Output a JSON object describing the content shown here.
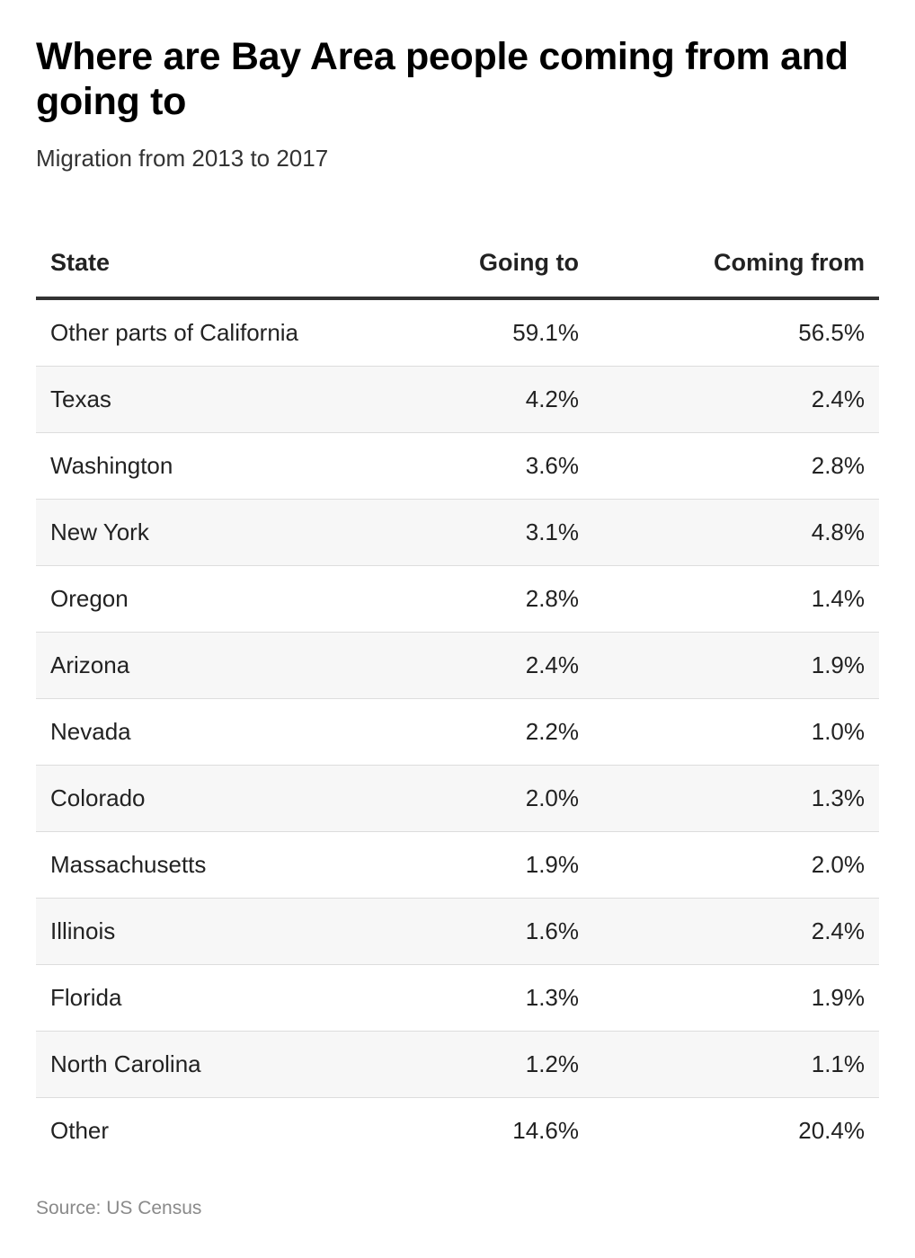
{
  "header": {
    "title": "Where are Bay Area people coming from and going to",
    "subtitle": "Migration from 2013 to 2017"
  },
  "table": {
    "columns": [
      "State",
      "Going to",
      "Coming from"
    ],
    "rows": [
      [
        "Other parts of California",
        "59.1%",
        "56.5%"
      ],
      [
        "Texas",
        "4.2%",
        "2.4%"
      ],
      [
        "Washington",
        "3.6%",
        "2.8%"
      ],
      [
        "New York",
        "3.1%",
        "4.8%"
      ],
      [
        "Oregon",
        "2.8%",
        "1.4%"
      ],
      [
        "Arizona",
        "2.4%",
        "1.9%"
      ],
      [
        "Nevada",
        "2.2%",
        "1.0%"
      ],
      [
        "Colorado",
        "2.0%",
        "1.3%"
      ],
      [
        "Massachusetts",
        "1.9%",
        "2.0%"
      ],
      [
        "Illinois",
        "1.6%",
        "2.4%"
      ],
      [
        "Florida",
        "1.3%",
        "1.9%"
      ],
      [
        "North Carolina",
        "1.2%",
        "1.1%"
      ],
      [
        "Other",
        "14.6%",
        "20.4%"
      ]
    ]
  },
  "footer": {
    "source": "Source: US Census"
  },
  "colors": {
    "header_rule": "#333333",
    "row_stripe": "#f7f7f7",
    "row_divider": "#dddddd",
    "source_text": "#8a8a8a"
  },
  "chart_data": {
    "type": "table",
    "title": "Where are Bay Area people coming from and going to",
    "subtitle": "Migration from 2013 to 2017",
    "columns": [
      "State",
      "Going to",
      "Coming from"
    ],
    "categories": [
      "Other parts of California",
      "Texas",
      "Washington",
      "New York",
      "Oregon",
      "Arizona",
      "Nevada",
      "Colorado",
      "Massachusetts",
      "Illinois",
      "Florida",
      "North Carolina",
      "Other"
    ],
    "series": [
      {
        "name": "Going to",
        "values": [
          59.1,
          4.2,
          3.6,
          3.1,
          2.8,
          2.4,
          2.2,
          2.0,
          1.9,
          1.6,
          1.3,
          1.2,
          14.6
        ]
      },
      {
        "name": "Coming from",
        "values": [
          56.5,
          2.4,
          2.8,
          4.8,
          1.4,
          1.9,
          1.0,
          1.3,
          2.0,
          2.4,
          1.9,
          1.1,
          20.4
        ]
      }
    ],
    "unit": "%",
    "source": "Source: US Census"
  }
}
